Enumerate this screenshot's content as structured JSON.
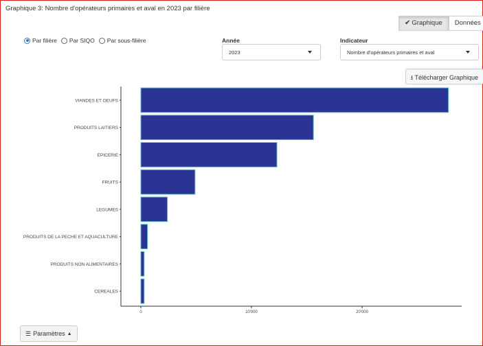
{
  "header": {
    "title": "Graphique 3: Nombre d'opérateurs primaires et aval en 2023 par filière"
  },
  "view_toggle": {
    "graph_label": "Graphique",
    "data_label": "Données",
    "active": "Graphique"
  },
  "grouping": {
    "options": [
      "Par filière",
      "Par SIQO",
      "Par sous-filière"
    ],
    "selected": "Par filière"
  },
  "filters": {
    "year": {
      "label": "Année",
      "value": "2023"
    },
    "indicator": {
      "label": "Indicateur",
      "value": "Nombre d'opérateurs primaires et aval"
    }
  },
  "download": {
    "label": "Télécharger Graphique"
  },
  "params": {
    "label": "Paramètres"
  },
  "colors": {
    "bar": "#2b3494",
    "bar_border": "#5fc2c6",
    "frame": "#d9201c"
  },
  "chart_data": {
    "type": "bar",
    "orientation": "horizontal",
    "categories": [
      "VIANDES ET OEUFS",
      "PRODUITS LAITIERS",
      "EPICERIE",
      "FRUITS",
      "LEGUMES",
      "PRODUITS DE LA PECHE ET AQUACULTURE",
      "PRODUITS NON ALIMENTAIRES",
      "CEREALES"
    ],
    "values": [
      27800,
      15600,
      12300,
      4900,
      2400,
      600,
      300,
      300
    ],
    "x_ticks": [
      0,
      10000,
      20000
    ],
    "x_tick_labels": [
      "0",
      "10'000",
      "20'000"
    ],
    "xlim": [
      -1800,
      29000
    ],
    "grid": false
  }
}
